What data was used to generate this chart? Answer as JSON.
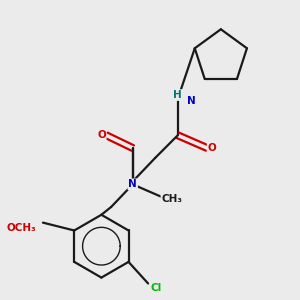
{
  "background_color": "#ebebeb",
  "bond_color": "#1a1a1a",
  "atom_colors": {
    "N": "#0000cc",
    "O": "#cc0000",
    "Cl": "#00bb00",
    "H": "#007777",
    "C": "#1a1a1a"
  },
  "figsize": [
    3.0,
    3.0
  ],
  "dpi": 100,
  "lw": 1.6,
  "fs": 7.5
}
